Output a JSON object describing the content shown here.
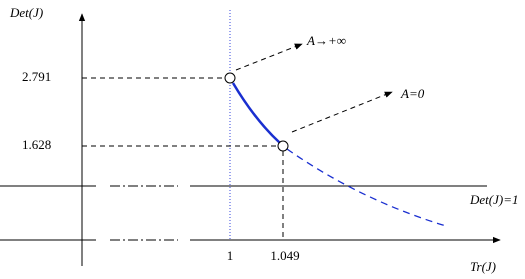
{
  "axes": {
    "y_label": "Det(J)",
    "x_label": "Tr(J)"
  },
  "y_labels": [
    "2.791",
    "1.628"
  ],
  "x_labels": [
    "1",
    "1.049"
  ],
  "line_label": "Det(J)=1",
  "annotations": [
    "A→+∞",
    "A=0"
  ]
}
